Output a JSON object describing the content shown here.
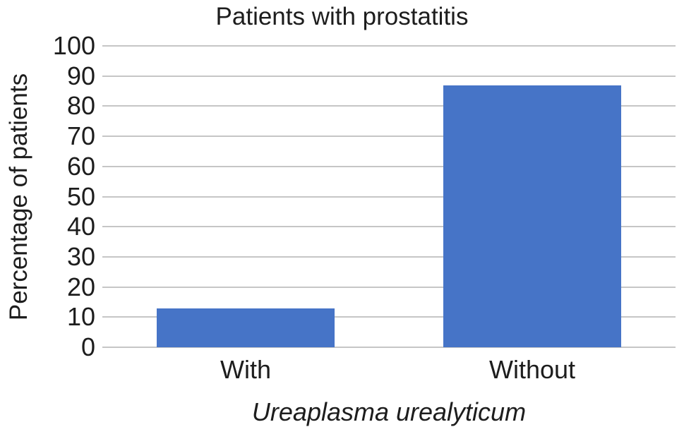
{
  "chart": {
    "title": "Patients with prostatitis",
    "ylabel": "Percentage of patients",
    "xlabel": "Ureaplasma urealyticum"
  },
  "chart_data": {
    "type": "bar",
    "title": "Patients with prostatitis",
    "xlabel": "Ureaplasma urealyticum",
    "ylabel": "Percentage of patients",
    "categories": [
      "With",
      "Without"
    ],
    "values": [
      13,
      87
    ],
    "yticks": [
      0,
      10,
      20,
      30,
      40,
      50,
      60,
      70,
      80,
      90,
      100
    ],
    "ylim": [
      0,
      100
    ],
    "grid": "horizontal",
    "legend_position": "none",
    "bar_color": "#4674c7",
    "gridline_color": "#c6c6c6",
    "text_color": "#1d1d1d",
    "background_color": "#ffffff"
  }
}
